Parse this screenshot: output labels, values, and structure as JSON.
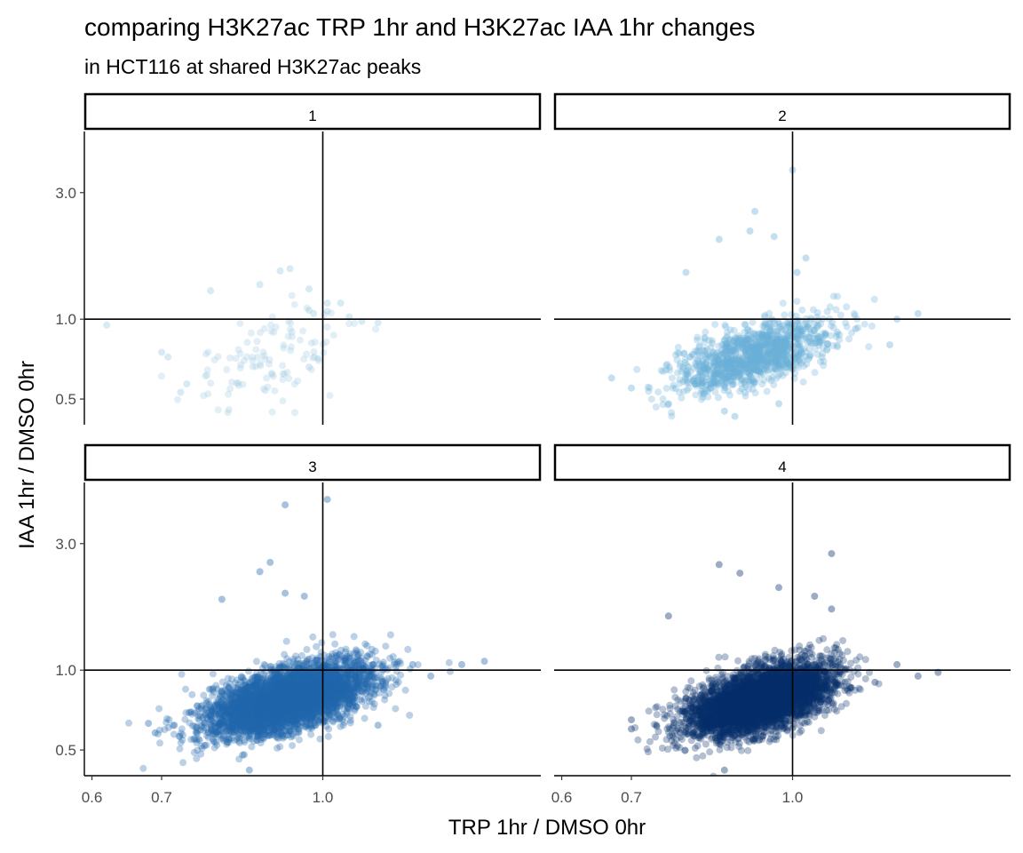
{
  "chart_data": {
    "type": "scatter",
    "title": "comparing H3K27ac TRP 1hr and H3K27ac IAA 1hr changes",
    "subtitle": "in HCT116 at shared H3K27ac peaks",
    "xlabel": "TRP 1hr / DMSO 0hr",
    "ylabel": "IAA 1hr / DMSO 0hr",
    "x_scale": "log",
    "y_scale": "log",
    "xlim": [
      0.59,
      1.62
    ],
    "ylim": [
      0.4,
      5.1
    ],
    "x_ticks": [
      0.6,
      0.7,
      1.0
    ],
    "x_tick_labels": [
      "0.6",
      "0.7",
      "1.0"
    ],
    "y_ticks": [
      0.5,
      1.0,
      3.0
    ],
    "y_tick_labels": [
      "0.5",
      "1.0",
      "3.0"
    ],
    "reference_lines": {
      "x": 1.0,
      "y": 1.0
    },
    "grid": false,
    "legend": "none",
    "panels": [
      {
        "label": "1",
        "color": "#9ecae1",
        "point_count": 110,
        "cloud": {
          "center_x": 0.89,
          "center_y": 0.72,
          "sd_log_x": 0.1,
          "sd_log_y": 0.2,
          "slope": 0.9
        },
        "points": [
          [
            0.62,
            0.95
          ],
          [
            0.93,
            1.55
          ],
          [
            0.91,
            1.52
          ],
          [
            0.87,
            1.35
          ],
          [
            0.97,
            1.3
          ],
          [
            0.78,
            1.28
          ],
          [
            1.01,
            1.15
          ],
          [
            1.04,
            1.15
          ],
          [
            0.97,
            1.08
          ],
          [
            1.01,
            1.07
          ],
          [
            0.98,
            1.05
          ],
          [
            1.06,
            1.02
          ],
          [
            1.13,
            0.97
          ],
          [
            1.09,
            0.98
          ],
          [
            0.7,
            0.75
          ],
          [
            0.71,
            0.72
          ],
          [
            0.73,
            0.53
          ],
          [
            0.74,
            0.57
          ],
          [
            0.99,
            0.71
          ],
          [
            0.97,
            0.66
          ]
        ]
      },
      {
        "label": "2",
        "color": "#6baed6",
        "point_count": 1200,
        "cloud": {
          "center_x": 0.92,
          "center_y": 0.73,
          "sd_log_x": 0.085,
          "sd_log_y": 0.13,
          "slope": 1.05
        },
        "points": [
          [
            1.0,
            3.65
          ],
          [
            0.92,
            2.55
          ],
          [
            0.91,
            2.15
          ],
          [
            0.85,
            2.0
          ],
          [
            0.96,
            2.05
          ],
          [
            1.03,
            1.7
          ],
          [
            1.01,
            1.5
          ],
          [
            0.79,
            1.5
          ],
          [
            1.32,
            1.05
          ],
          [
            1.26,
            1.0
          ],
          [
            1.15,
            0.92
          ],
          [
            0.67,
            0.6
          ],
          [
            0.7,
            0.55
          ],
          [
            0.76,
            0.48
          ],
          [
            0.86,
            0.45
          ],
          [
            0.88,
            0.43
          ],
          [
            0.97,
            0.48
          ],
          [
            1.24,
            0.8
          ]
        ]
      },
      {
        "label": "3",
        "color": "#2166ac",
        "point_count": 4500,
        "cloud": {
          "center_x": 0.93,
          "center_y": 0.78,
          "sd_log_x": 0.09,
          "sd_log_y": 0.13,
          "slope": 1.0
        },
        "points": [
          [
            1.01,
            4.4
          ],
          [
            0.92,
            4.2
          ],
          [
            0.89,
            2.55
          ],
          [
            0.87,
            2.35
          ],
          [
            0.92,
            1.95
          ],
          [
            0.96,
            1.9
          ],
          [
            0.8,
            1.85
          ],
          [
            1.43,
            1.08
          ],
          [
            1.36,
            1.05
          ],
          [
            1.22,
            1.05
          ],
          [
            0.68,
            0.63
          ],
          [
            0.69,
            0.58
          ],
          [
            0.72,
            0.62
          ],
          [
            0.77,
            0.52
          ],
          [
            0.84,
            0.48
          ],
          [
            0.85,
            0.42
          ],
          [
            1.27,
            0.95
          ],
          [
            1.13,
            0.62
          ]
        ]
      },
      {
        "label": "4",
        "color": "#08306b",
        "point_count": 4500,
        "cloud": {
          "center_x": 0.93,
          "center_y": 0.77,
          "sd_log_x": 0.08,
          "sd_log_y": 0.13,
          "slope": 1.05
        },
        "points": [
          [
            1.09,
            2.75
          ],
          [
            0.85,
            2.5
          ],
          [
            0.89,
            2.32
          ],
          [
            0.97,
            2.05
          ],
          [
            1.05,
            1.9
          ],
          [
            1.09,
            1.7
          ],
          [
            0.76,
            1.6
          ],
          [
            1.26,
            1.05
          ],
          [
            1.32,
            0.95
          ],
          [
            1.38,
            0.98
          ],
          [
            0.7,
            0.6
          ],
          [
            0.7,
            0.65
          ],
          [
            0.74,
            0.62
          ],
          [
            0.78,
            0.58
          ],
          [
            0.86,
            0.42
          ],
          [
            0.92,
            0.55
          ],
          [
            1.2,
            0.9
          ]
        ]
      }
    ]
  }
}
